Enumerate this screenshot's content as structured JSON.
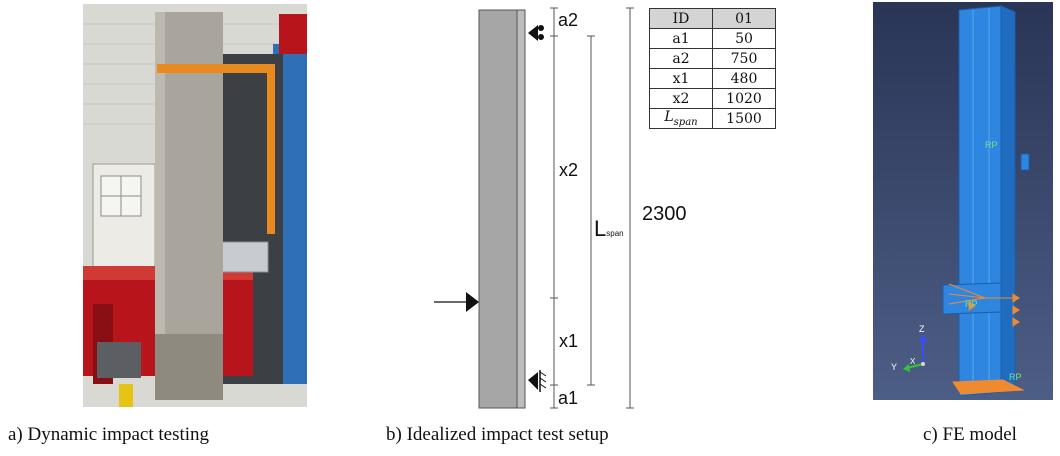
{
  "panel_a": {
    "caption": "a) Dynamic impact testing"
  },
  "panel_b": {
    "caption": "b) Idealized impact test setup",
    "labels": {
      "a2": "a2",
      "x2": "x2",
      "lspan_main": "L",
      "lspan_sub": "span",
      "total": "2300",
      "x1": "x1",
      "a1": "a1"
    },
    "table": {
      "header": [
        "ID",
        "01"
      ],
      "rows": [
        {
          "name": "a1",
          "value": "50"
        },
        {
          "name": "a2",
          "value": "750"
        },
        {
          "name": "x1",
          "value": "480"
        },
        {
          "name": "x2",
          "value": "1020"
        }
      ],
      "last_row": {
        "name_main": "L",
        "name_sub": "span",
        "value": "1500"
      }
    }
  },
  "panel_c": {
    "caption": "c) FE model",
    "rp_label": "RP",
    "axis_z": "Z",
    "axis_y": "Y",
    "axis_x": "X"
  },
  "colors": {
    "photo_wall": "#d9d9d4",
    "steel_red": "#b8141c",
    "steel_blue": "#2f6fb7",
    "concrete": "#a9a59c",
    "column_gray": "#a6a6a6",
    "fe_background": "#2f3e64",
    "fe_model": "#2e86e0",
    "fe_boundary": "#f08a30",
    "table_header": "#d4d4d4"
  }
}
